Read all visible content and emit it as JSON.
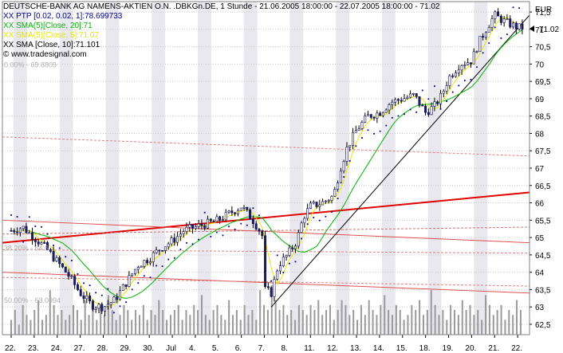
{
  "chart_data": {
    "type": "candlestick",
    "title": "DEUTSCHE-BANK AG NAMENS-AKTIEN O.N. .DBKGn.DE, 1 Stunde - 21.06.2005 18:00:00 - 22.07.2005 18:00:00 - 71.02",
    "currency": "EUR",
    "last_price": 71.02,
    "last_price_label": "71.02",
    "legend": [
      {
        "text": "XX PTP [0.02, 0.02, 1]:78.699733",
        "color": "#00008b"
      },
      {
        "text": "XX SMA(5)[Close, 20]:71",
        "color": "#00b400"
      },
      {
        "text": "XX SMA(5)[Close, 5]:71.07",
        "color": "#e6e600"
      },
      {
        "text": "XX SMA [Close, 10]:71.101",
        "color": "#000000"
      }
    ],
    "copyright": "© www.tradesignal.com",
    "ylim": [
      62.2,
      71.8
    ],
    "y_ticks": [
      "62,5",
      "63",
      "63,5",
      "64",
      "64,5",
      "65",
      "65,5",
      "66",
      "66,5",
      "67",
      "67,5",
      "68",
      "68,5",
      "69",
      "69,5",
      "70",
      "70,5",
      "71",
      "71,5"
    ],
    "x_ticks": [
      "22.",
      "23.",
      "24.",
      "27.",
      "28.",
      "29.",
      "30.",
      "Jul",
      "4.",
      "5.",
      "6.",
      "7.",
      "8.",
      "11.",
      "12.",
      "13.",
      "14.",
      "15.",
      "18.",
      "19.",
      "20.",
      "21.",
      "22."
    ],
    "fib_labels": [
      {
        "text": "0.00% - 69.8809",
        "value": 69.8809
      },
      {
        "text": "38.20% - 64.6",
        "value": 64.6
      },
      {
        "text": "50.00% - 63.0994",
        "value": 63.0994
      }
    ],
    "close_path": [
      [
        0,
        65.2
      ],
      [
        0.5,
        65.3
      ],
      [
        1,
        65.0
      ],
      [
        1.5,
        64.7
      ],
      [
        2,
        64.3
      ],
      [
        2.5,
        63.9
      ],
      [
        3,
        63.4
      ],
      [
        3.5,
        63.05
      ],
      [
        4,
        63.0
      ],
      [
        4.5,
        63.2
      ],
      [
        5,
        63.7
      ],
      [
        5.5,
        64.2
      ],
      [
        6,
        64.4
      ],
      [
        6.5,
        64.7
      ],
      [
        7,
        64.9
      ],
      [
        7.5,
        65.2
      ],
      [
        8,
        65.3
      ],
      [
        8.5,
        65.4
      ],
      [
        9,
        65.5
      ],
      [
        9.5,
        65.7
      ],
      [
        10,
        65.9
      ],
      [
        10.5,
        65.5
      ],
      [
        10.9,
        65.1
      ],
      [
        11,
        63.5
      ],
      [
        11.3,
        63.4
      ],
      [
        11.6,
        64.2
      ],
      [
        12,
        64.5
      ],
      [
        12.4,
        64.9
      ],
      [
        12.7,
        65.6
      ],
      [
        13,
        65.9
      ],
      [
        13.5,
        66.0
      ],
      [
        14,
        66.2
      ],
      [
        14.3,
        67.0
      ],
      [
        14.6,
        67.6
      ],
      [
        15,
        68.1
      ],
      [
        15.5,
        68.5
      ],
      [
        16,
        68.6
      ],
      [
        16.5,
        68.9
      ],
      [
        17,
        69.0
      ],
      [
        17.5,
        69.1
      ],
      [
        18,
        68.6
      ],
      [
        18.4,
        68.8
      ],
      [
        18.7,
        69.1
      ],
      [
        19,
        69.6
      ],
      [
        19.5,
        70.0
      ],
      [
        20,
        70.1
      ],
      [
        20.3,
        70.6
      ],
      [
        20.7,
        71.1
      ],
      [
        21,
        71.4
      ],
      [
        21.5,
        71.2
      ],
      [
        22,
        71.05
      ]
    ],
    "volume": [
      0.3,
      0.5,
      0.2,
      0.6,
      0.4,
      0.3,
      0.5,
      0.7,
      0.3,
      0.4,
      0.9,
      0.6,
      0.4,
      0.5,
      0.3,
      0.4,
      0.6,
      0.5,
      0.3,
      0.7,
      0.4,
      0.5,
      0.3,
      0.6,
      0.4,
      0.8,
      0.5,
      0.3,
      0.4,
      0.6,
      0.5,
      0.3,
      0.5,
      0.4,
      0.6,
      0.3,
      0.5,
      0.4,
      0.7,
      0.5,
      0.3,
      0.4,
      0.5,
      0.6,
      0.3,
      0.5,
      0.4,
      0.6,
      0.5,
      0.8,
      0.4,
      0.3,
      0.5,
      0.6,
      0.4,
      0.3,
      0.7,
      0.4,
      0.5,
      0.3,
      0.6,
      0.4,
      0.5,
      0.3,
      0.9,
      0.6,
      0.5,
      1.0,
      0.7,
      0.5,
      0.6,
      0.4,
      0.5,
      0.3,
      0.6,
      0.5,
      0.4,
      0.6,
      0.5,
      0.7,
      0.4,
      0.5,
      0.6,
      0.3,
      0.5,
      0.7,
      0.6,
      0.4,
      0.5,
      0.3,
      0.6,
      0.4,
      0.7,
      0.5,
      0.4,
      0.6,
      0.8,
      0.5,
      0.4,
      0.6,
      0.5,
      0.3,
      0.4,
      0.6,
      0.5,
      0.7,
      0.4,
      0.5,
      0.9,
      0.6,
      0.4,
      0.5,
      0.3,
      0.6,
      0.5,
      0.4,
      0.7,
      0.5,
      0.6,
      0.4,
      0.5,
      0.3,
      0.8,
      0.6,
      0.4,
      0.5,
      0.6,
      0.3,
      0.5,
      0.4,
      0.7,
      0.5
    ],
    "trend_lines": [
      {
        "from": [
          -0.5,
          64.85
        ],
        "to": [
          22.5,
          66.3
        ],
        "color": "#e00000",
        "width": 2
      },
      {
        "from": [
          -0.5,
          65.5
        ],
        "to": [
          22.5,
          64.85
        ],
        "color": "#e05050",
        "width": 1
      },
      {
        "from": [
          -0.5,
          64.0
        ],
        "to": [
          22.5,
          63.4
        ],
        "color": "#e05050",
        "width": 1
      },
      {
        "from": [
          -0.5,
          63.85
        ],
        "to": [
          22.5,
          63.6
        ],
        "color": "#e08080",
        "width": 1,
        "dash": true
      },
      {
        "from": [
          -0.5,
          64.65
        ],
        "to": [
          22.5,
          64.55
        ],
        "color": "#e08080",
        "width": 1,
        "dash": true
      },
      {
        "from": [
          -0.5,
          67.9
        ],
        "to": [
          22.5,
          67.35
        ],
        "color": "#e08080",
        "width": 1,
        "dash": true
      },
      {
        "from": [
          -0.5,
          65.1
        ],
        "to": [
          22.5,
          65.3
        ],
        "color": "#d07070",
        "width": 1,
        "dash": true
      },
      {
        "from": [
          11.3,
          63.0
        ],
        "to": [
          22.5,
          71.4
        ],
        "color": "#000000",
        "width": 1
      }
    ]
  }
}
